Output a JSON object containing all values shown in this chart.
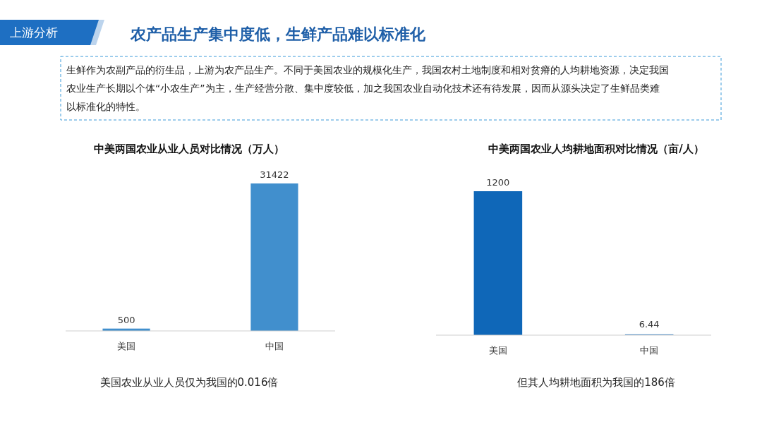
{
  "chart_data": [
    {
      "type": "other",
      "title": "农产品生产集中度低，生鲜产品难以标准化",
      "annotations": [
        "上游分析",
        "生鲜作为农副产品的衍生品，上游为农产品生产。不同于美国农业的规模化生产，我国农村土地制度和相对贫瘠的人均耕地资源，决定我国农业生产长期以个体“小农生产”为主，生产经营分散、集中度较低，加之我国农业自动化技术还有待发展，因而从源头决定了生鲜品类难以标准化的特性。"
      ]
    },
    {
      "type": "bar",
      "title": "中美两国农业从业人员对比情况（万人）",
      "categories": [
        "美国",
        "中国"
      ],
      "values": [
        500,
        31422
      ],
      "color": "#418fcd",
      "data_labels": true,
      "annotations": [
        "美国农业从业人员仅为我国的0.016倍"
      ]
    },
    {
      "type": "bar",
      "title": "中美两国农业人均耕地面积对比情况（亩/人）",
      "categories": [
        "美国",
        "中国"
      ],
      "values": [
        1200,
        6.44
      ],
      "color": "#0f67b8",
      "data_labels": true,
      "annotations": [
        "但其人均耕地面积为我国的186倍"
      ]
    }
  ]
}
